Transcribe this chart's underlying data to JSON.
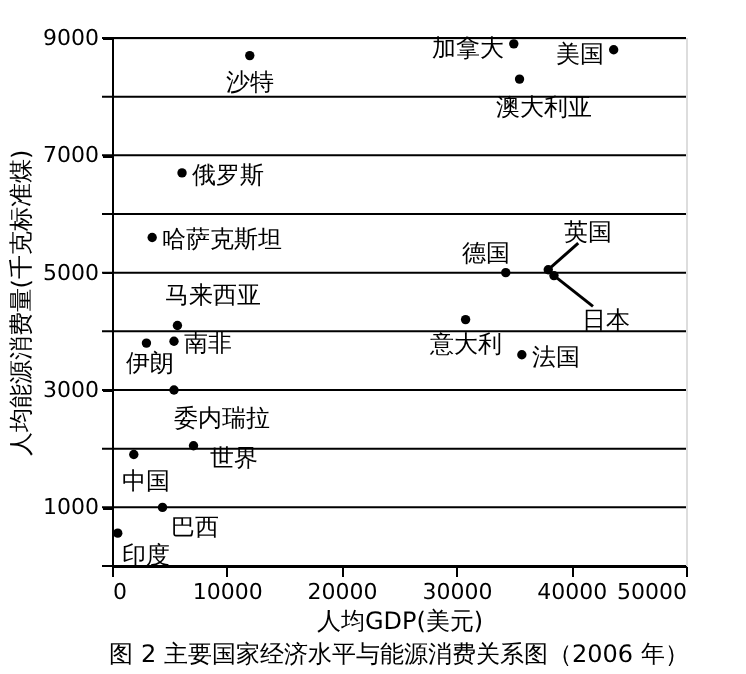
{
  "chart_data": {
    "type": "scatter",
    "title": "图 2   主要国家经济水平与能源消费关系图（2006 年）",
    "xlabel": "人均GDP(美元)",
    "ylabel": "人均能源消费量(千克标准煤)",
    "xlim": [
      0,
      50000
    ],
    "xticks": [
      0,
      10000,
      20000,
      30000,
      40000,
      50000
    ],
    "ylim": [
      0,
      9000
    ],
    "yticks": [
      {
        "value": 0,
        "label": null
      },
      1000,
      {
        "value": 2000,
        "label": null
      },
      3000,
      {
        "value": 4000,
        "label": null
      },
      5000,
      {
        "value": 6000,
        "label": null
      },
      7000,
      {
        "value": 8000,
        "label": null
      },
      9000
    ],
    "grid": "y",
    "marker": "circle",
    "series": [
      {
        "name": "沙特",
        "color": "#000000",
        "x": [
          12000
        ],
        "values": [
          8700
        ]
      },
      {
        "name": "加拿大",
        "color": "#000000",
        "x": [
          35000
        ],
        "values": [
          8900
        ]
      },
      {
        "name": "美国",
        "color": "#000000",
        "x": [
          43700
        ],
        "values": [
          8800
        ]
      },
      {
        "name": "澳大利亚",
        "color": "#000000",
        "x": [
          35500
        ],
        "values": [
          8300
        ]
      },
      {
        "name": "俄罗斯",
        "color": "#000000",
        "x": [
          6100
        ],
        "values": [
          6700
        ]
      },
      {
        "name": "哈萨克斯坦",
        "color": "#000000",
        "x": [
          3500
        ],
        "values": [
          5600
        ]
      },
      {
        "name": "德国",
        "color": "#000000",
        "x": [
          34300
        ],
        "values": [
          5000
        ]
      },
      {
        "name": "英国",
        "color": "#000000",
        "x": [
          38000
        ],
        "values": [
          5050
        ]
      },
      {
        "name": "日本",
        "color": "#000000",
        "x": [
          38500
        ],
        "values": [
          4950
        ]
      },
      {
        "name": "马来西亚",
        "color": "#000000",
        "x": [
          5700
        ],
        "values": [
          4100
        ]
      },
      {
        "name": "意大利",
        "color": "#000000",
        "x": [
          30800
        ],
        "values": [
          4200
        ]
      },
      {
        "name": "法国",
        "color": "#000000",
        "x": [
          35700
        ],
        "values": [
          3600
        ]
      },
      {
        "name": "伊朗",
        "color": "#000000",
        "x": [
          3000
        ],
        "values": [
          3800
        ]
      },
      {
        "name": "南非",
        "color": "#000000",
        "x": [
          5400
        ],
        "values": [
          3830
        ]
      },
      {
        "name": "委内瑞拉",
        "color": "#000000",
        "x": [
          5400
        ],
        "values": [
          3000
        ]
      },
      {
        "name": "世界",
        "color": "#000000",
        "x": [
          7100
        ],
        "values": [
          2050
        ]
      },
      {
        "name": "中国",
        "color": "#000000",
        "x": [
          1900
        ],
        "values": [
          1900
        ]
      },
      {
        "name": "巴西",
        "color": "#000000",
        "x": [
          4400
        ],
        "values": [
          1000
        ]
      },
      {
        "name": "印度",
        "color": "#000000",
        "x": [
          500
        ],
        "values": [
          560
        ]
      }
    ]
  }
}
